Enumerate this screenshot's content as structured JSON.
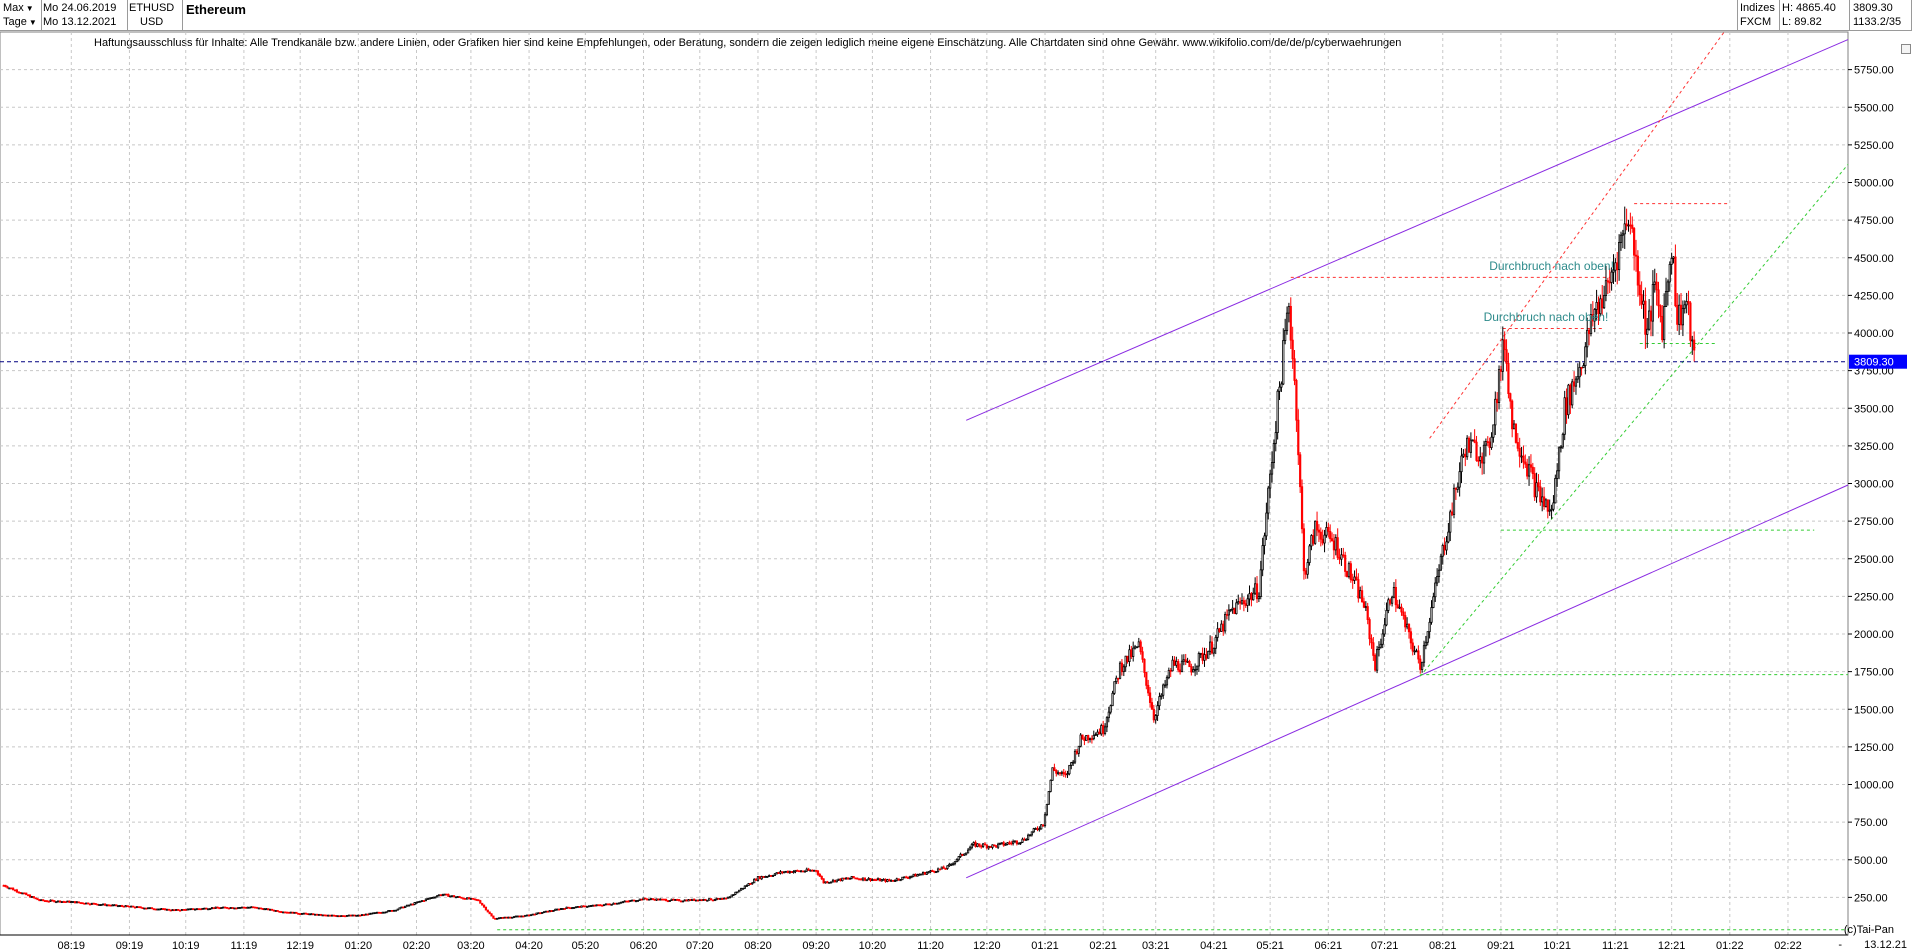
{
  "header": {
    "range_label": "Max",
    "period_label": "Tage",
    "start_date": "Mo 24.06.2019",
    "end_date": "Mo 13.12.2021",
    "symbol": "ETHUSD",
    "currency": "USD",
    "title": "Ethereum",
    "category": "Indizes",
    "source": "FXCM",
    "high_label": "H: 4865.40",
    "low_label": "L: 89.82",
    "last_price": "3809.30",
    "ratio": "1133.2/35"
  },
  "disclaimer": "Haftungsausschluss für Inhalte: Alle Trendkanäle bzw. andere Linien, oder Grafiken hier sind keine Empfehlungen, oder Beratung, sondern die zeigen lediglich meine eigene Einschätzung. Alle Chartdaten sind ohne Gewähr.  www.wikifolio.com/de/de/p/cyberwaehrungen",
  "footer": {
    "copyright": "(c)Tai-Pan",
    "last_date": "13.12.21",
    "scroll_label": "-"
  },
  "colors": {
    "up": "#000000",
    "down": "#ff0000",
    "channel": "#8a2be2",
    "support": "#33cc33",
    "resistance": "#ff3333",
    "annotation": "#2e8b8b",
    "price_line": "#000080",
    "price_tag": "#0000ff",
    "grid": "#c8c8c8"
  },
  "chart_data": {
    "type": "candlestick",
    "title": "Ethereum",
    "ylim": [
      0,
      6000
    ],
    "y_ticks": [
      250,
      500,
      750,
      1000,
      1250,
      1500,
      1750,
      2000,
      2250,
      2500,
      2750,
      3000,
      3250,
      3500,
      3750,
      4000,
      4250,
      4500,
      4750,
      5000,
      5250,
      5500,
      5750
    ],
    "y_tick_labels": [
      "250.00",
      "500.00",
      "750.00",
      "1000.00",
      "1250.00",
      "1500.00",
      "1750.00",
      "2000.00",
      "2250.00",
      "2500.00",
      "2750.00",
      "3000.00",
      "3250.00",
      "3500.00",
      "3750.00",
      "4000.00",
      "4250.00",
      "4500.00",
      "4750.00",
      "5000.00",
      "5250.00",
      "5500.00",
      "5750.00"
    ],
    "x_start": "2019-06-24",
    "x_end": "2022-03-05",
    "x_ticks": [
      {
        "date": "2019-08-01",
        "label": "08:19"
      },
      {
        "date": "2019-09-01",
        "label": "09:19"
      },
      {
        "date": "2019-10-01",
        "label": "10:19"
      },
      {
        "date": "2019-11-01",
        "label": "11:19"
      },
      {
        "date": "2019-12-01",
        "label": "12:19"
      },
      {
        "date": "2020-01-01",
        "label": "01:20"
      },
      {
        "date": "2020-02-01",
        "label": "02:20"
      },
      {
        "date": "2020-03-01",
        "label": "03:20"
      },
      {
        "date": "2020-04-01",
        "label": "04:20"
      },
      {
        "date": "2020-05-01",
        "label": "05:20"
      },
      {
        "date": "2020-06-01",
        "label": "06:20"
      },
      {
        "date": "2020-07-01",
        "label": "07:20"
      },
      {
        "date": "2020-08-01",
        "label": "08:20"
      },
      {
        "date": "2020-09-01",
        "label": "09:20"
      },
      {
        "date": "2020-10-01",
        "label": "10:20"
      },
      {
        "date": "2020-11-01",
        "label": "11:20"
      },
      {
        "date": "2020-12-01",
        "label": "12:20"
      },
      {
        "date": "2021-01-01",
        "label": "01:21"
      },
      {
        "date": "2021-02-01",
        "label": "02:21"
      },
      {
        "date": "2021-03-01",
        "label": "03:21"
      },
      {
        "date": "2021-04-01",
        "label": "04:21"
      },
      {
        "date": "2021-05-01",
        "label": "05:21"
      },
      {
        "date": "2021-06-01",
        "label": "06:21"
      },
      {
        "date": "2021-07-01",
        "label": "07:21"
      },
      {
        "date": "2021-08-01",
        "label": "08:21"
      },
      {
        "date": "2021-09-01",
        "label": "09:21"
      },
      {
        "date": "2021-10-01",
        "label": "10:21"
      },
      {
        "date": "2021-11-01",
        "label": "11:21"
      },
      {
        "date": "2021-12-01",
        "label": "12:21"
      },
      {
        "date": "2022-01-01",
        "label": "01:22"
      },
      {
        "date": "2022-02-01",
        "label": "02:22"
      }
    ],
    "series": [
      {
        "date": "2019-06-26",
        "close": 330
      },
      {
        "date": "2019-07-15",
        "close": 230
      },
      {
        "date": "2019-08-01",
        "close": 220
      },
      {
        "date": "2019-08-20",
        "close": 200
      },
      {
        "date": "2019-09-10",
        "close": 180
      },
      {
        "date": "2019-09-25",
        "close": 165
      },
      {
        "date": "2019-10-15",
        "close": 180
      },
      {
        "date": "2019-11-05",
        "close": 185
      },
      {
        "date": "2019-11-25",
        "close": 150
      },
      {
        "date": "2019-12-15",
        "close": 130
      },
      {
        "date": "2020-01-01",
        "close": 130
      },
      {
        "date": "2020-01-20",
        "close": 165
      },
      {
        "date": "2020-02-14",
        "close": 270
      },
      {
        "date": "2020-03-05",
        "close": 230
      },
      {
        "date": "2020-03-13",
        "close": 110
      },
      {
        "date": "2020-03-31",
        "close": 130
      },
      {
        "date": "2020-04-20",
        "close": 180
      },
      {
        "date": "2020-05-10",
        "close": 200
      },
      {
        "date": "2020-06-01",
        "close": 240
      },
      {
        "date": "2020-06-20",
        "close": 230
      },
      {
        "date": "2020-07-15",
        "close": 240
      },
      {
        "date": "2020-08-01",
        "close": 380
      },
      {
        "date": "2020-08-15",
        "close": 420
      },
      {
        "date": "2020-09-01",
        "close": 430
      },
      {
        "date": "2020-09-05",
        "close": 350
      },
      {
        "date": "2020-09-20",
        "close": 380
      },
      {
        "date": "2020-10-10",
        "close": 360
      },
      {
        "date": "2020-10-25",
        "close": 400
      },
      {
        "date": "2020-11-10",
        "close": 450
      },
      {
        "date": "2020-11-24",
        "close": 600
      },
      {
        "date": "2020-12-05",
        "close": 590
      },
      {
        "date": "2020-12-20",
        "close": 630
      },
      {
        "date": "2020-12-31",
        "close": 740
      },
      {
        "date": "2021-01-05",
        "close": 1100
      },
      {
        "date": "2021-01-12",
        "close": 1050
      },
      {
        "date": "2021-01-20",
        "close": 1300
      },
      {
        "date": "2021-02-01",
        "close": 1370
      },
      {
        "date": "2021-02-10",
        "close": 1780
      },
      {
        "date": "2021-02-20",
        "close": 1920
      },
      {
        "date": "2021-02-28",
        "close": 1450
      },
      {
        "date": "2021-03-10",
        "close": 1800
      },
      {
        "date": "2021-03-20",
        "close": 1780
      },
      {
        "date": "2021-03-31",
        "close": 1920
      },
      {
        "date": "2021-04-10",
        "close": 2150
      },
      {
        "date": "2021-04-25",
        "close": 2300
      },
      {
        "date": "2021-05-03",
        "close": 3300
      },
      {
        "date": "2021-05-11",
        "close": 4200
      },
      {
        "date": "2021-05-15",
        "close": 3500
      },
      {
        "date": "2021-05-19",
        "close": 2400
      },
      {
        "date": "2021-05-25",
        "close": 2700
      },
      {
        "date": "2021-06-05",
        "close": 2600
      },
      {
        "date": "2021-06-20",
        "close": 2200
      },
      {
        "date": "2021-06-26",
        "close": 1800
      },
      {
        "date": "2021-07-05",
        "close": 2300
      },
      {
        "date": "2021-07-15",
        "close": 1950
      },
      {
        "date": "2021-07-20",
        "close": 1790
      },
      {
        "date": "2021-08-01",
        "close": 2550
      },
      {
        "date": "2021-08-13",
        "close": 3250
      },
      {
        "date": "2021-08-25",
        "close": 3200
      },
      {
        "date": "2021-09-03",
        "close": 3950
      },
      {
        "date": "2021-09-07",
        "close": 3400
      },
      {
        "date": "2021-09-20",
        "close": 2950
      },
      {
        "date": "2021-09-28",
        "close": 2800
      },
      {
        "date": "2021-10-05",
        "close": 3500
      },
      {
        "date": "2021-10-15",
        "close": 3850
      },
      {
        "date": "2021-10-21",
        "close": 4150
      },
      {
        "date": "2021-10-28",
        "close": 4300
      },
      {
        "date": "2021-11-08",
        "close": 4800
      },
      {
        "date": "2021-11-18",
        "close": 4000
      },
      {
        "date": "2021-11-22",
        "close": 4300
      },
      {
        "date": "2021-11-26",
        "close": 4050
      },
      {
        "date": "2021-12-01",
        "close": 4600
      },
      {
        "date": "2021-12-04",
        "close": 4100
      },
      {
        "date": "2021-12-09",
        "close": 4200
      },
      {
        "date": "2021-12-13",
        "close": 3809
      }
    ],
    "trendlines": [
      {
        "name": "channel-upper",
        "color": "channel",
        "dash": false,
        "p1": {
          "date": "2020-11-20",
          "value": 3420
        },
        "p2": {
          "date": "2022-03-05",
          "value": 5950
        }
      },
      {
        "name": "channel-lower",
        "color": "channel",
        "dash": false,
        "p1": {
          "date": "2020-11-20",
          "value": 380
        },
        "p2": {
          "date": "2022-03-05",
          "value": 2990
        }
      },
      {
        "name": "resistance-dotted",
        "color": "resistance",
        "dash": true,
        "p1": {
          "date": "2021-07-25",
          "value": 3300
        },
        "p2": {
          "date": "2021-12-29",
          "value": 6000
        }
      },
      {
        "name": "support-dotted",
        "color": "support",
        "dash": true,
        "p1": {
          "date": "2021-07-20",
          "value": 1720
        },
        "p2": {
          "date": "2022-03-05",
          "value": 5120
        }
      },
      {
        "name": "may-high",
        "color": "resistance",
        "dash": true,
        "p1": {
          "date": "2021-05-12",
          "value": 4370
        },
        "p2": {
          "date": "2021-10-29",
          "value": 4370
        }
      },
      {
        "name": "sept-high",
        "color": "resistance",
        "dash": true,
        "p1": {
          "date": "2021-09-02",
          "value": 4030
        },
        "p2": {
          "date": "2021-10-25",
          "value": 4030
        }
      },
      {
        "name": "nov-high",
        "color": "resistance",
        "dash": true,
        "p1": {
          "date": "2021-11-11",
          "value": 4860
        },
        "p2": {
          "date": "2021-12-31",
          "value": 4860
        }
      },
      {
        "name": "dec-support",
        "color": "support",
        "dash": true,
        "p1": {
          "date": "2021-11-14",
          "value": 3930
        },
        "p2": {
          "date": "2021-12-24",
          "value": 3930
        }
      },
      {
        "name": "sept-low",
        "color": "support",
        "dash": true,
        "p1": {
          "date": "2021-09-01",
          "value": 2690
        },
        "p2": {
          "date": "2022-02-15",
          "value": 2690
        }
      },
      {
        "name": "july-low",
        "color": "support",
        "dash": true,
        "p1": {
          "date": "2021-07-20",
          "value": 1730
        },
        "p2": {
          "date": "2022-03-05",
          "value": 1730
        }
      },
      {
        "name": "base-line",
        "color": "support",
        "dash": true,
        "p1": {
          "date": "2020-03-15",
          "value": 35
        },
        "p2": {
          "date": "2022-03-05",
          "value": 35
        }
      }
    ],
    "annotations": [
      {
        "text": "Durchbruch nach oben!",
        "date": "2021-09-28",
        "value": 4420
      },
      {
        "text": "Durchbruch nach oben!",
        "date": "2021-09-25",
        "value": 4080
      }
    ],
    "current_price": 3809.3,
    "current_price_label": "3809.30"
  }
}
